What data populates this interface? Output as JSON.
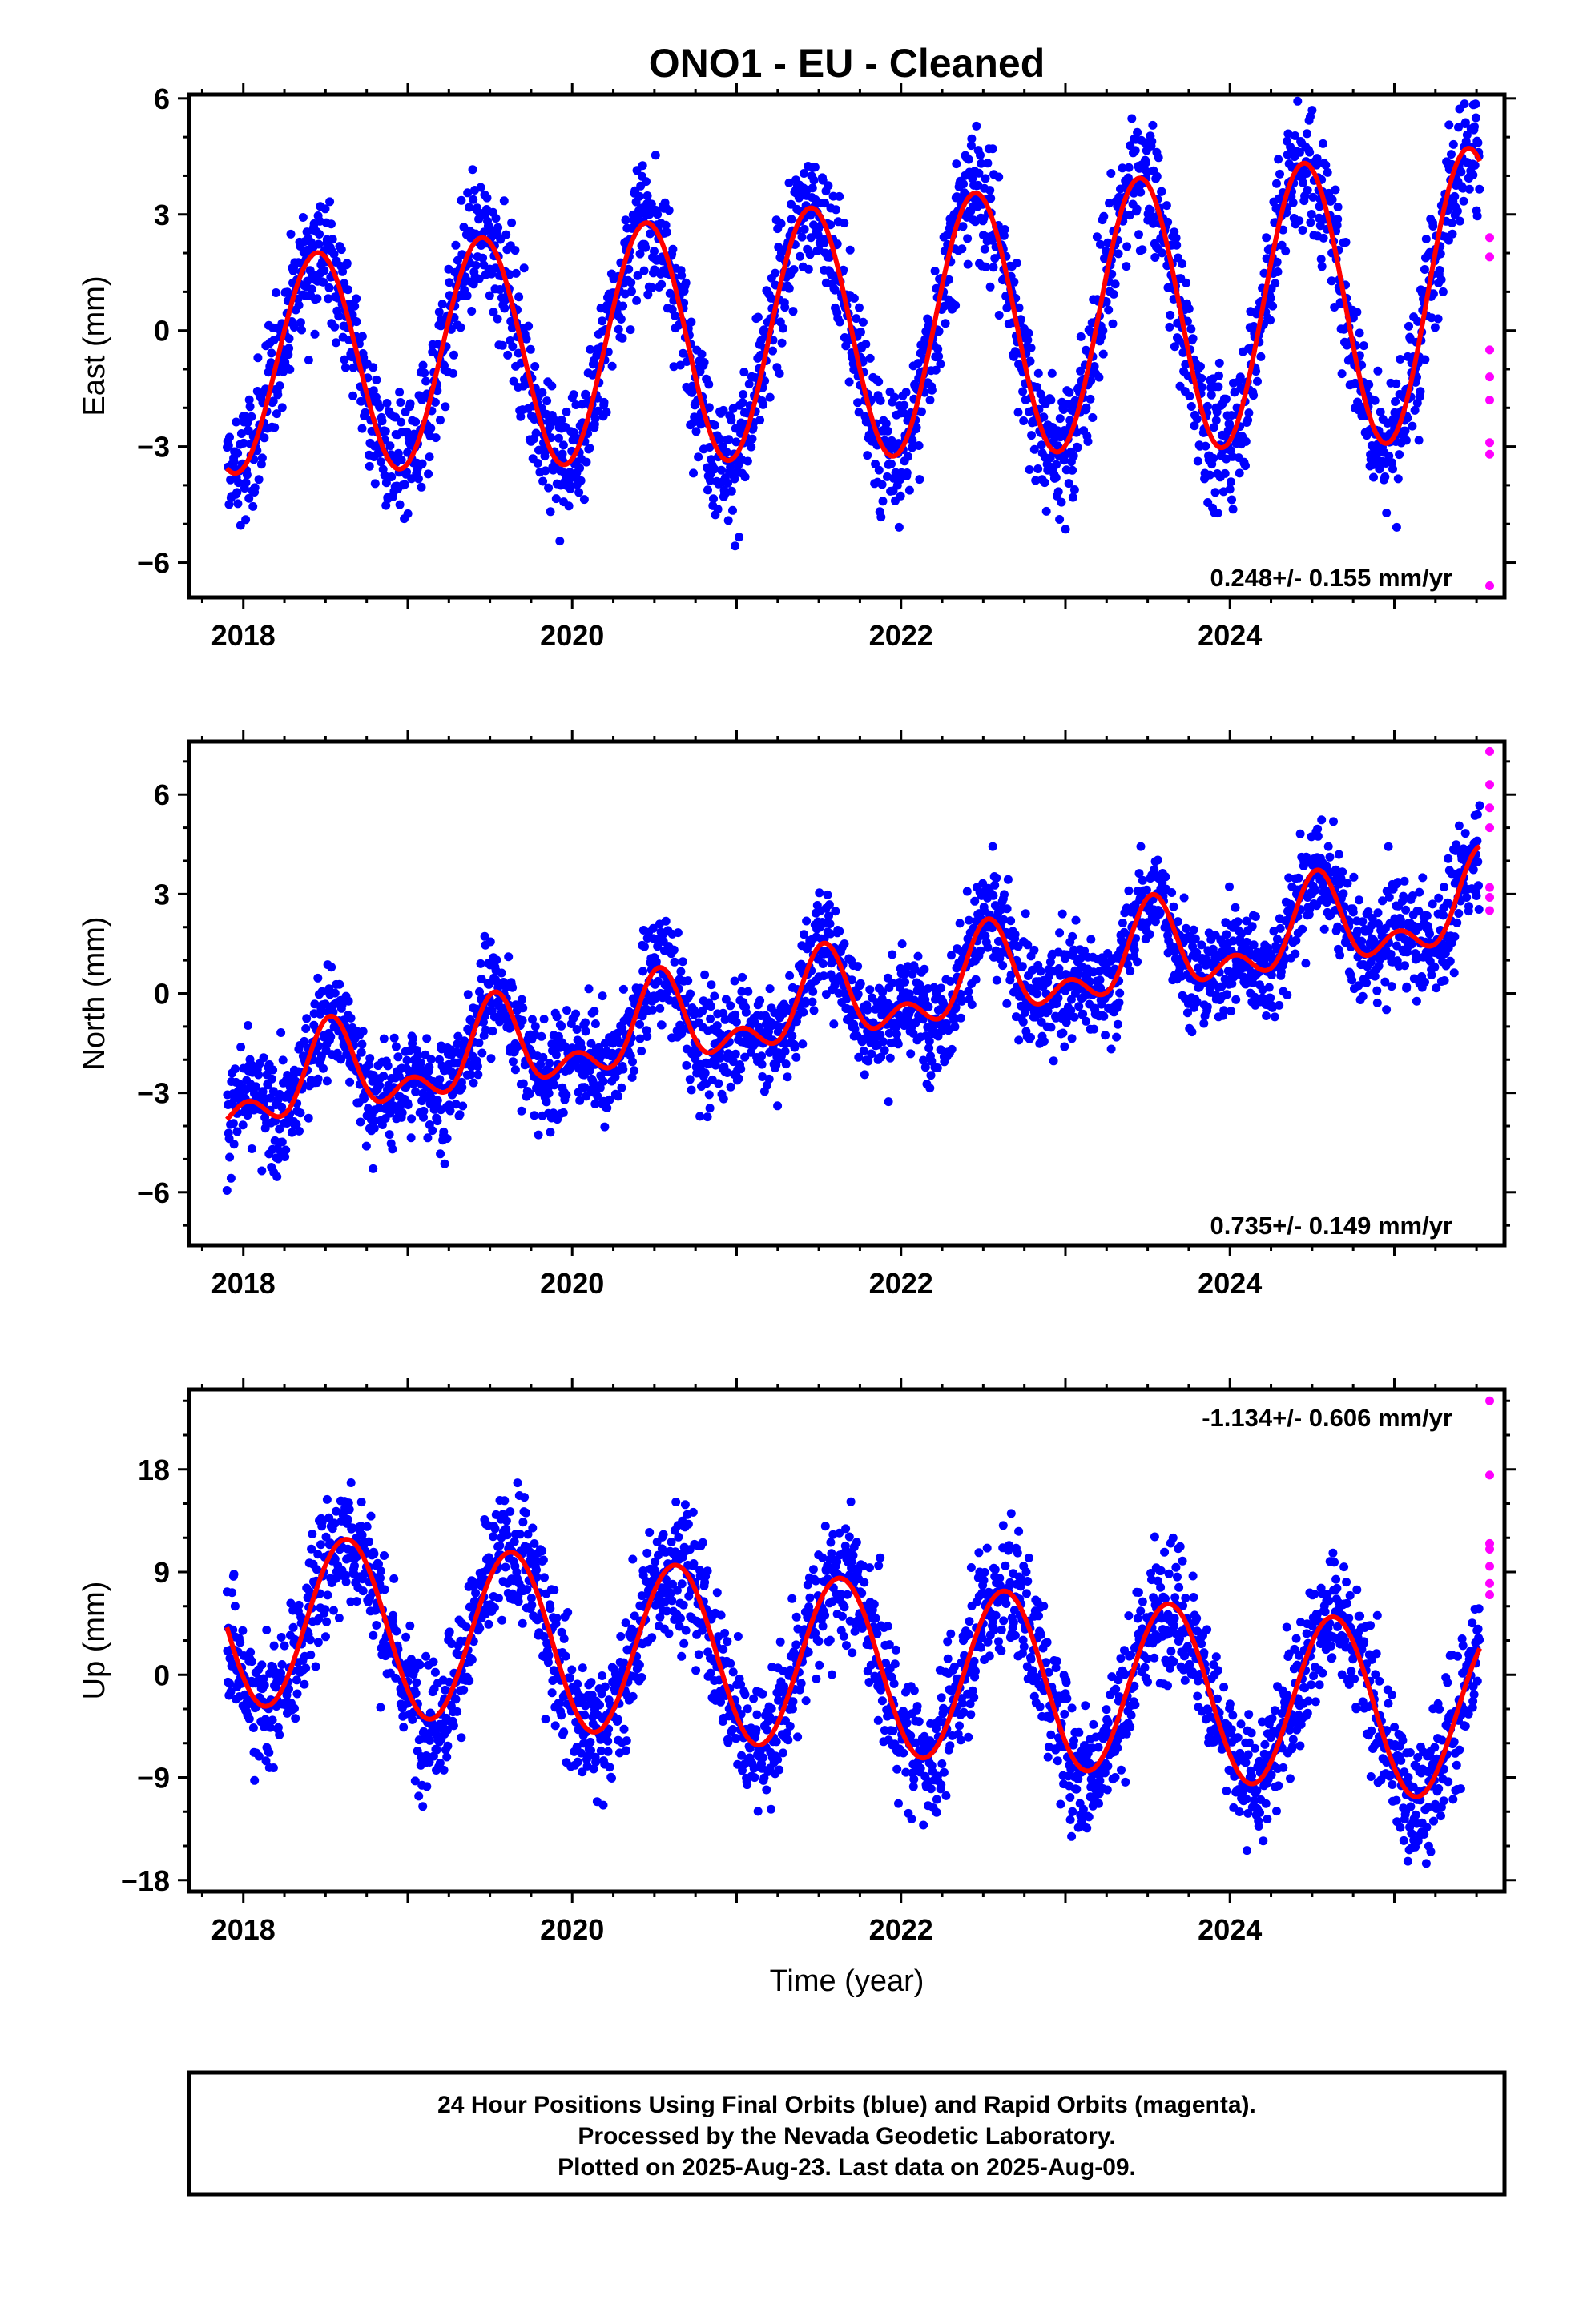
{
  "figure": {
    "title": "ONO1  - EU - Cleaned",
    "footer": [
      "24 Hour Positions Using Final Orbits (blue) and Rapid Orbits (magenta).",
      "Processed by the Nevada Geodetic Laboratory.",
      "Plotted on 2025-Aug-23. Last data on 2025-Aug-09."
    ],
    "xlabel": "Time (year)"
  },
  "colors": {
    "final_orbits": "#0000ff",
    "rapid_orbits": "#ff00ff",
    "model_fit": "#ff0000",
    "frame": "#000000"
  },
  "chart_data": [
    {
      "type": "scatter",
      "component": "East",
      "ylabel": "East (mm)",
      "xlim": [
        2017.67,
        2025.67
      ],
      "ylim": [
        -6.9,
        6.1
      ],
      "xticks": [
        2018,
        2020,
        2022,
        2024
      ],
      "yticks": [
        -6,
        -3,
        0,
        3,
        6
      ],
      "rate": "0.248+/- 0.155 mm/yr",
      "data_span": [
        2017.9,
        2025.52
      ],
      "model": {
        "offset": -0.95,
        "trend": 0.248,
        "ref_year": 2017.9,
        "annual_amp": 2.75,
        "annual_amp_growth": 0.05,
        "annual_peak": 0.45,
        "semi_amp": 0.0,
        "semi_peak": 0.0
      },
      "scatter_sd": 0.85,
      "points_per_year": 330,
      "rapid_points": [
        {
          "x": 2025.58,
          "y": 2.4
        },
        {
          "x": 2025.58,
          "y": 1.9
        },
        {
          "x": 2025.58,
          "y": -0.5
        },
        {
          "x": 2025.58,
          "y": -1.2
        },
        {
          "x": 2025.58,
          "y": -1.8
        },
        {
          "x": 2025.58,
          "y": -2.9
        },
        {
          "x": 2025.58,
          "y": -3.2
        },
        {
          "x": 2025.58,
          "y": -6.6
        }
      ]
    },
    {
      "type": "scatter",
      "component": "North",
      "ylabel": "North (mm)",
      "xlim": [
        2017.67,
        2025.67
      ],
      "ylim": [
        -7.6,
        7.6
      ],
      "xticks": [
        2018,
        2020,
        2022,
        2024
      ],
      "yticks": [
        -6,
        -3,
        0,
        3,
        6
      ],
      "rate": "0.735+/- 0.149 mm/yr",
      "data_span": [
        2017.9,
        2025.52
      ],
      "model": {
        "offset": -3.0,
        "trend": 0.735,
        "ref_year": 2017.9,
        "annual_amp": 1.1,
        "annual_amp_growth": 0.0,
        "annual_peak": 0.53,
        "semi_amp": 0.75,
        "semi_peak": 0.53
      },
      "scatter_sd": 0.8,
      "points_per_year": 330,
      "rapid_points": [
        {
          "x": 2025.58,
          "y": 7.3
        },
        {
          "x": 2025.58,
          "y": 6.3
        },
        {
          "x": 2025.58,
          "y": 5.6
        },
        {
          "x": 2025.58,
          "y": 5.0
        },
        {
          "x": 2025.58,
          "y": 3.2
        },
        {
          "x": 2025.58,
          "y": 2.9
        },
        {
          "x": 2025.58,
          "y": 2.5
        }
      ]
    },
    {
      "type": "scatter",
      "component": "Up",
      "ylabel": "Up (mm)",
      "xlim": [
        2017.67,
        2025.67
      ],
      "ylim": [
        -19,
        25
      ],
      "xticks": [
        2018,
        2020,
        2022,
        2024
      ],
      "yticks": [
        -18,
        -9,
        0,
        9,
        18
      ],
      "rate": "-1.134+/- 0.606 mm/yr",
      "data_span": [
        2017.9,
        2025.52
      ],
      "model": {
        "offset": 5.1,
        "trend": -1.134,
        "ref_year": 2017.9,
        "annual_amp": 7.6,
        "annual_amp_growth": 0.0,
        "annual_peak": 0.63,
        "semi_amp": 0.0,
        "semi_peak": 0.0
      },
      "scatter_sd": 2.9,
      "points_per_year": 330,
      "rapid_points": [
        {
          "x": 2025.58,
          "y": 24.0
        },
        {
          "x": 2025.58,
          "y": 17.5
        },
        {
          "x": 2025.58,
          "y": 11.5
        },
        {
          "x": 2025.58,
          "y": 11.0
        },
        {
          "x": 2025.58,
          "y": 9.5
        },
        {
          "x": 2025.58,
          "y": 8.0
        },
        {
          "x": 2025.58,
          "y": 7.0
        }
      ]
    }
  ]
}
